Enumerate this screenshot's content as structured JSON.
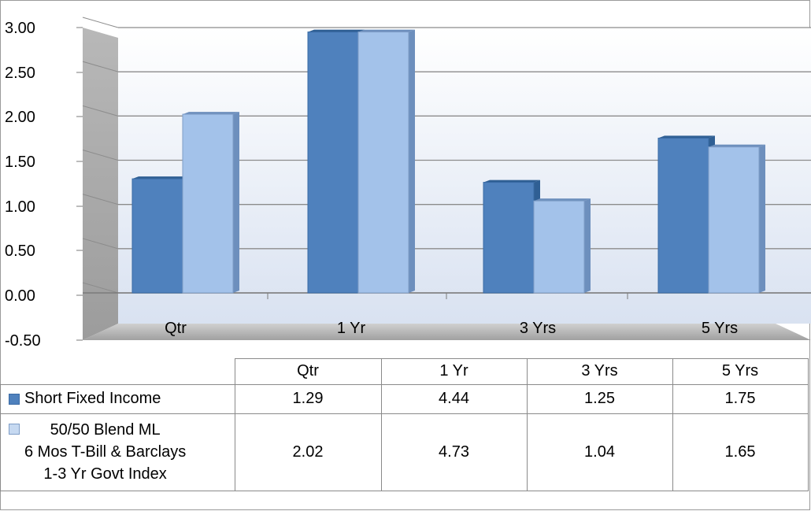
{
  "chart_data": {
    "type": "bar",
    "title": "",
    "xlabel": "",
    "ylabel": "",
    "categories": [
      "Qtr",
      "1 Yr",
      "3 Yrs",
      "5 Yrs"
    ],
    "series": [
      {
        "name": "Short Fixed Income",
        "values": [
          1.29,
          4.44,
          1.25,
          1.75
        ],
        "color": "#4f81bd"
      },
      {
        "name": "50/50 Blend ML\n6 Mos T-Bill & Barclays\n1-3 Yr Govt Index",
        "values": [
          2.02,
          4.73,
          1.04,
          1.65
        ],
        "color": "#a3c2ea"
      }
    ],
    "yticks": [
      "3.00",
      "2.50",
      "2.00",
      "1.50",
      "1.00",
      "0.50",
      "0.00",
      "-0.50"
    ],
    "ylim": [
      -0.5,
      3.0
    ],
    "grid": true,
    "legend": "data-table"
  },
  "table": {
    "headers": [
      "Qtr",
      "1 Yr",
      "3 Yrs",
      "5 Yrs"
    ],
    "rows": [
      {
        "label": "Short Fixed Income",
        "values": [
          "1.29",
          "4.44",
          "1.25",
          "1.75"
        ]
      },
      {
        "label_lines": [
          "50/50 Blend ML",
          "6 Mos T-Bill & Barclays",
          "1-3 Yr Govt Index"
        ],
        "values": [
          "2.02",
          "4.73",
          "1.04",
          "1.65"
        ]
      }
    ]
  }
}
